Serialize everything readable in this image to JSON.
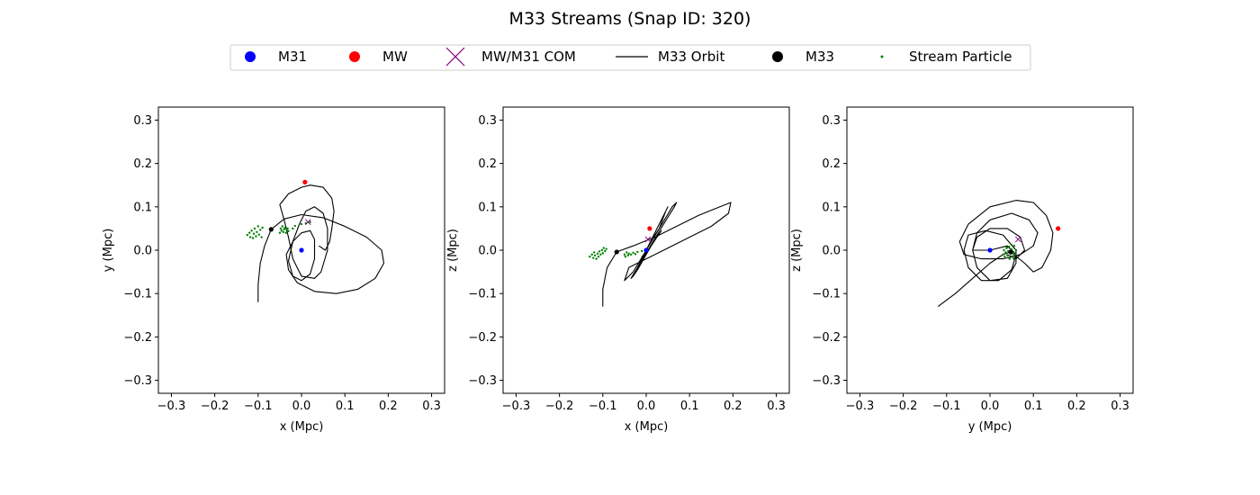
{
  "figure": {
    "title": "M33 Streams (Snap ID: 320)"
  },
  "legend": {
    "placement": "top-center",
    "entries": [
      {
        "label": "M31",
        "marker": "circle",
        "color": "#0000ff"
      },
      {
        "label": "MW",
        "marker": "circle",
        "color": "#ff0000"
      },
      {
        "label": "MW/M31 COM",
        "marker": "x",
        "color": "#800080"
      },
      {
        "label": "M33 Orbit",
        "marker": "line",
        "color": "#000000"
      },
      {
        "label": "M33",
        "marker": "circle",
        "color": "#000000"
      },
      {
        "label": "Stream Particle",
        "marker": "dot",
        "color": "#008000"
      }
    ]
  },
  "chart_data": [
    {
      "type": "line",
      "xlabel": "x (Mpc)",
      "ylabel": "y (Mpc)",
      "xlim": [
        -0.33,
        0.33
      ],
      "ylim": [
        -0.33,
        0.33
      ],
      "xticks": [
        "−0.3",
        "−0.2",
        "−0.1",
        "0.0",
        "0.1",
        "0.2",
        "0.3"
      ],
      "yticks": [
        "−0.3",
        "−0.2",
        "−0.1",
        "0.0",
        "0.1",
        "0.2",
        "0.3"
      ],
      "grid": false,
      "markers": {
        "M31": [
          0.0,
          0.0
        ],
        "MW": [
          0.008,
          0.157
        ],
        "COM": [
          0.015,
          0.065
        ],
        "M33": [
          -0.07,
          0.048
        ]
      },
      "orbit": [
        [
          -0.1,
          -0.12
        ],
        [
          -0.1,
          -0.08
        ],
        [
          -0.095,
          -0.03
        ],
        [
          -0.085,
          0.01
        ],
        [
          -0.07,
          0.048
        ],
        [
          -0.04,
          0.072
        ],
        [
          0.0,
          0.082
        ],
        [
          0.05,
          0.075
        ],
        [
          0.1,
          0.055
        ],
        [
          0.15,
          0.03
        ],
        [
          0.185,
          0.0
        ],
        [
          0.19,
          -0.03
        ],
        [
          0.17,
          -0.065
        ],
        [
          0.13,
          -0.09
        ],
        [
          0.08,
          -0.1
        ],
        [
          0.03,
          -0.095
        ],
        [
          -0.01,
          -0.075
        ],
        [
          -0.03,
          -0.045
        ],
        [
          -0.035,
          -0.01
        ],
        [
          -0.02,
          0.02
        ],
        [
          0.0,
          0.04
        ],
        [
          0.02,
          0.045
        ],
        [
          0.03,
          0.025
        ],
        [
          0.03,
          -0.02
        ],
        [
          0.02,
          -0.055
        ],
        [
          0.0,
          -0.07
        ],
        [
          -0.02,
          -0.06
        ],
        [
          -0.03,
          -0.025
        ],
        [
          -0.02,
          0.02
        ],
        [
          -0.005,
          0.06
        ],
        [
          0.01,
          0.09
        ],
        [
          0.03,
          0.1
        ],
        [
          0.05,
          0.085
        ],
        [
          0.06,
          0.05
        ],
        [
          0.06,
          0.0
        ],
        [
          0.045,
          -0.05
        ],
        [
          0.03,
          -0.065
        ],
        [
          0.0,
          -0.06
        ],
        [
          -0.02,
          -0.02
        ],
        [
          -0.03,
          0.03
        ],
        [
          -0.04,
          0.07
        ],
        [
          -0.05,
          0.105
        ],
        [
          -0.03,
          0.13
        ],
        [
          0.0,
          0.145
        ],
        [
          0.02,
          0.15
        ],
        [
          0.05,
          0.145
        ],
        [
          0.07,
          0.12
        ],
        [
          0.075,
          0.09
        ],
        [
          0.07,
          0.05
        ],
        [
          0.065,
          0.02
        ],
        [
          0.055,
          0.0
        ],
        [
          0.04,
          0.01
        ]
      ],
      "stream": [
        [
          -0.125,
          0.035
        ],
        [
          -0.12,
          0.04
        ],
        [
          -0.118,
          0.03
        ],
        [
          -0.115,
          0.045
        ],
        [
          -0.112,
          0.028
        ],
        [
          -0.11,
          0.038
        ],
        [
          -0.108,
          0.05
        ],
        [
          -0.105,
          0.032
        ],
        [
          -0.103,
          0.042
        ],
        [
          -0.1,
          0.055
        ],
        [
          -0.098,
          0.036
        ],
        [
          -0.095,
          0.047
        ],
        [
          -0.092,
          0.03
        ],
        [
          -0.09,
          0.052
        ],
        [
          -0.05,
          0.04
        ],
        [
          -0.048,
          0.05
        ],
        [
          -0.046,
          0.045
        ],
        [
          -0.044,
          0.055
        ],
        [
          -0.042,
          0.042
        ],
        [
          -0.04,
          0.048
        ],
        [
          -0.038,
          0.052
        ],
        [
          -0.036,
          0.04
        ],
        [
          -0.034,
          0.047
        ],
        [
          -0.032,
          0.05
        ],
        [
          -0.03,
          0.044
        ],
        [
          -0.02,
          0.05
        ],
        [
          -0.015,
          0.056
        ],
        [
          0.0,
          0.06
        ],
        [
          0.01,
          0.062
        ],
        [
          0.02,
          0.065
        ]
      ]
    },
    {
      "type": "line",
      "xlabel": "x (Mpc)",
      "ylabel": "z (Mpc)",
      "xlim": [
        -0.33,
        0.33
      ],
      "ylim": [
        -0.33,
        0.33
      ],
      "xticks": [
        "−0.3",
        "−0.2",
        "−0.1",
        "0.0",
        "0.1",
        "0.2",
        "0.3"
      ],
      "yticks": [
        "−0.3",
        "−0.2",
        "−0.1",
        "0.0",
        "0.1",
        "0.2",
        "0.3"
      ],
      "grid": false,
      "markers": {
        "M31": [
          0.0,
          0.0
        ],
        "MW": [
          0.008,
          0.05
        ],
        "COM": [
          0.004,
          0.025
        ],
        "M33": [
          -0.068,
          -0.004
        ]
      },
      "orbit": [
        [
          -0.1,
          -0.13
        ],
        [
          -0.1,
          -0.09
        ],
        [
          -0.09,
          -0.04
        ],
        [
          -0.068,
          -0.004
        ],
        [
          -0.03,
          0.01
        ],
        [
          0.02,
          0.03
        ],
        [
          0.07,
          0.055
        ],
        [
          0.12,
          0.08
        ],
        [
          0.17,
          0.1
        ],
        [
          0.195,
          0.11
        ],
        [
          0.19,
          0.085
        ],
        [
          0.15,
          0.055
        ],
        [
          0.1,
          0.03
        ],
        [
          0.05,
          0.005
        ],
        [
          0.0,
          -0.02
        ],
        [
          -0.04,
          -0.04
        ],
        [
          -0.05,
          -0.07
        ],
        [
          -0.03,
          -0.05
        ],
        [
          0.0,
          0.0
        ],
        [
          0.03,
          0.05
        ],
        [
          0.06,
          0.1
        ],
        [
          0.07,
          0.11
        ],
        [
          0.065,
          0.1
        ],
        [
          0.04,
          0.06
        ],
        [
          0.01,
          0.01
        ],
        [
          -0.02,
          -0.04
        ],
        [
          -0.035,
          -0.065
        ],
        [
          -0.03,
          -0.06
        ],
        [
          -0.01,
          -0.02
        ],
        [
          0.01,
          0.02
        ],
        [
          0.03,
          0.05
        ],
        [
          0.045,
          0.09
        ],
        [
          0.05,
          0.1
        ],
        [
          0.04,
          0.08
        ],
        [
          0.02,
          0.04
        ],
        [
          0.0,
          0.0
        ],
        [
          -0.02,
          -0.045
        ],
        [
          -0.03,
          -0.06
        ],
        [
          -0.02,
          -0.045
        ],
        [
          0.0,
          -0.01
        ],
        [
          0.02,
          0.025
        ],
        [
          0.035,
          0.045
        ],
        [
          0.025,
          0.03
        ],
        [
          0.005,
          0.0
        ],
        [
          -0.01,
          -0.015
        ],
        [
          0.0,
          -0.005
        ]
      ],
      "stream": [
        [
          -0.13,
          -0.015
        ],
        [
          -0.125,
          -0.01
        ],
        [
          -0.122,
          -0.018
        ],
        [
          -0.12,
          -0.005
        ],
        [
          -0.118,
          -0.012
        ],
        [
          -0.115,
          -0.02
        ],
        [
          -0.112,
          -0.008
        ],
        [
          -0.11,
          -0.015
        ],
        [
          -0.108,
          -0.003
        ],
        [
          -0.105,
          -0.01
        ],
        [
          -0.102,
          0.0
        ],
        [
          -0.1,
          -0.007
        ],
        [
          -0.098,
          0.005
        ],
        [
          -0.095,
          -0.002
        ],
        [
          -0.092,
          0.003
        ],
        [
          -0.05,
          -0.01
        ],
        [
          -0.048,
          -0.015
        ],
        [
          -0.045,
          -0.005
        ],
        [
          -0.042,
          -0.012
        ],
        [
          -0.04,
          -0.008
        ],
        [
          -0.035,
          -0.01
        ],
        [
          -0.03,
          -0.006
        ],
        [
          -0.025,
          -0.009
        ],
        [
          -0.02,
          -0.004
        ],
        [
          -0.01,
          -0.002
        ],
        [
          0.0,
          0.0
        ]
      ]
    },
    {
      "type": "line",
      "xlabel": "y (Mpc)",
      "ylabel": "z (Mpc)",
      "xlim": [
        -0.33,
        0.33
      ],
      "ylim": [
        -0.33,
        0.33
      ],
      "xticks": [
        "−0.3",
        "−0.2",
        "−0.1",
        "0.0",
        "0.1",
        "0.2",
        "0.3"
      ],
      "yticks": [
        "−0.3",
        "−0.2",
        "−0.1",
        "0.0",
        "0.1",
        "0.2",
        "0.3"
      ],
      "grid": false,
      "markers": {
        "M31": [
          0.0,
          0.0
        ],
        "MW": [
          0.157,
          0.05
        ],
        "COM": [
          0.065,
          0.025
        ],
        "M33": [
          0.048,
          -0.004
        ]
      },
      "orbit": [
        [
          -0.12,
          -0.13
        ],
        [
          -0.08,
          -0.1
        ],
        [
          -0.04,
          -0.065
        ],
        [
          0.0,
          -0.03
        ],
        [
          0.03,
          -0.01
        ],
        [
          0.048,
          -0.004
        ],
        [
          0.08,
          -0.03
        ],
        [
          0.1,
          -0.05
        ],
        [
          0.12,
          -0.04
        ],
        [
          0.14,
          0.0
        ],
        [
          0.145,
          0.04
        ],
        [
          0.13,
          0.08
        ],
        [
          0.1,
          0.11
        ],
        [
          0.06,
          0.115
        ],
        [
          0.0,
          0.1
        ],
        [
          -0.05,
          0.06
        ],
        [
          -0.07,
          0.02
        ],
        [
          -0.06,
          -0.01
        ],
        [
          -0.02,
          -0.02
        ],
        [
          0.03,
          -0.02
        ],
        [
          0.07,
          -0.01
        ],
        [
          0.1,
          0.01
        ],
        [
          0.11,
          0.04
        ],
        [
          0.09,
          0.07
        ],
        [
          0.05,
          0.085
        ],
        [
          0.0,
          0.07
        ],
        [
          -0.03,
          0.04
        ],
        [
          -0.04,
          0.0
        ],
        [
          -0.03,
          -0.04
        ],
        [
          0.0,
          -0.07
        ],
        [
          0.04,
          -0.065
        ],
        [
          0.06,
          -0.03
        ],
        [
          0.06,
          0.0
        ],
        [
          0.03,
          0.035
        ],
        [
          -0.01,
          0.045
        ],
        [
          -0.05,
          0.035
        ],
        [
          -0.06,
          0.0
        ],
        [
          -0.05,
          -0.04
        ],
        [
          -0.02,
          -0.07
        ],
        [
          0.02,
          -0.07
        ],
        [
          0.05,
          -0.045
        ],
        [
          0.06,
          -0.01
        ],
        [
          0.04,
          0.01
        ],
        [
          0.0,
          0.0
        ],
        [
          -0.04,
          0.0
        ],
        [
          -0.03,
          0.03
        ],
        [
          0.0,
          0.05
        ],
        [
          0.04,
          0.05
        ],
        [
          0.07,
          0.03
        ],
        [
          0.08,
          0.0
        ],
        [
          0.06,
          -0.02
        ],
        [
          0.04,
          -0.01
        ]
      ],
      "stream": [
        [
          0.03,
          -0.01
        ],
        [
          0.032,
          0.0
        ],
        [
          0.034,
          -0.015
        ],
        [
          0.036,
          -0.005
        ],
        [
          0.038,
          0.005
        ],
        [
          0.04,
          -0.012
        ],
        [
          0.042,
          -0.002
        ],
        [
          0.044,
          0.008
        ],
        [
          0.046,
          -0.018
        ],
        [
          0.048,
          -0.008
        ],
        [
          0.05,
          0.002
        ],
        [
          0.052,
          -0.014
        ],
        [
          0.054,
          -0.004
        ],
        [
          0.056,
          0.01
        ],
        [
          0.058,
          -0.01
        ],
        [
          0.06,
          0.0
        ],
        [
          0.045,
          -0.02
        ],
        [
          0.05,
          0.012
        ],
        [
          0.04,
          0.006
        ],
        [
          0.055,
          -0.02
        ]
      ]
    }
  ]
}
